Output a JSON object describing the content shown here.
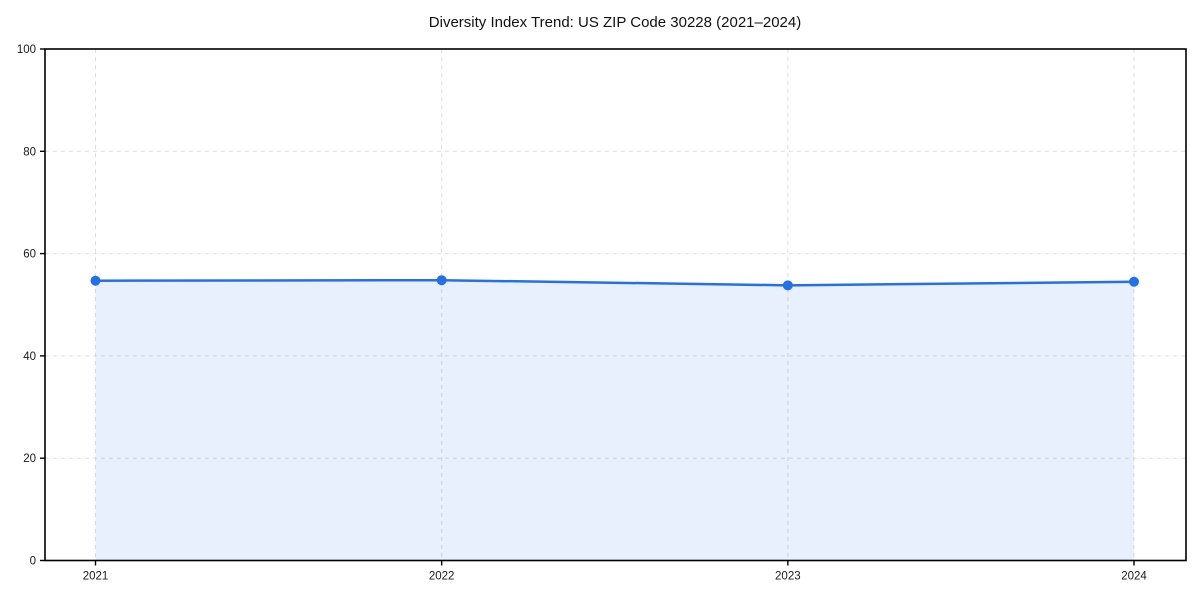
{
  "chart_data": {
    "type": "area",
    "title": "Diversity Index Trend: US ZIP Code 30228 (2021–2024)",
    "xlabel": "",
    "ylabel": "",
    "x": [
      2021,
      2022,
      2023,
      2024
    ],
    "xtick_labels": [
      "2021",
      "2022",
      "2023",
      "2024"
    ],
    "series": [
      {
        "name": "Diversity Index",
        "values": [
          54.7,
          54.8,
          53.8,
          54.5
        ]
      }
    ],
    "ylim": [
      0,
      100
    ],
    "yticks": [
      0,
      20,
      40,
      60,
      80,
      100
    ],
    "grid": true,
    "grid_style": "dashed",
    "legend_position": "none",
    "colors": {
      "line": "#2470e8",
      "marker": "#2470e8",
      "fill": "rgba(36, 112, 232, 0.10)",
      "grid": "#dedede",
      "spine": "#000000",
      "tick": "#000000",
      "tick_label": "#1a1a1a",
      "title": "#111111",
      "background": "#ffffff"
    }
  }
}
